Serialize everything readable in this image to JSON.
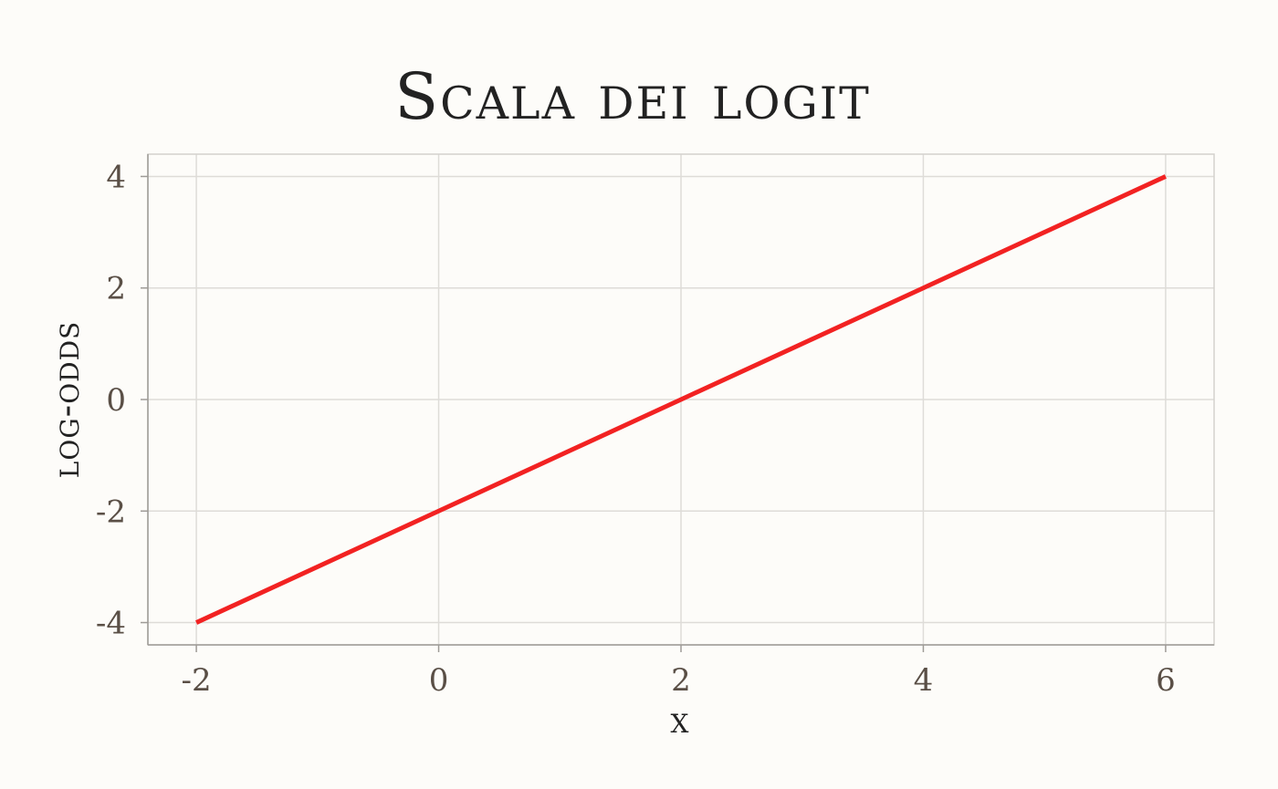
{
  "chart_data": {
    "type": "line",
    "title": "Scala dei logit",
    "xlabel": "x",
    "ylabel": "log-odds",
    "xlim": [
      -2.4,
      6.4
    ],
    "ylim": [
      -4.4,
      4.4
    ],
    "x_ticks": [
      -2,
      0,
      2,
      4,
      6
    ],
    "y_ticks": [
      -4,
      -2,
      0,
      2,
      4
    ],
    "x_tick_labels": [
      "-2",
      "0",
      "2",
      "4",
      "6"
    ],
    "y_tick_labels": [
      "-4",
      "-2",
      "0",
      "2",
      "4"
    ],
    "grid": true,
    "series": [
      {
        "x": [
          -2,
          0,
          2,
          4,
          6
        ],
        "y": [
          -4,
          -2,
          0,
          2,
          4
        ],
        "color": "#f22222"
      }
    ]
  }
}
